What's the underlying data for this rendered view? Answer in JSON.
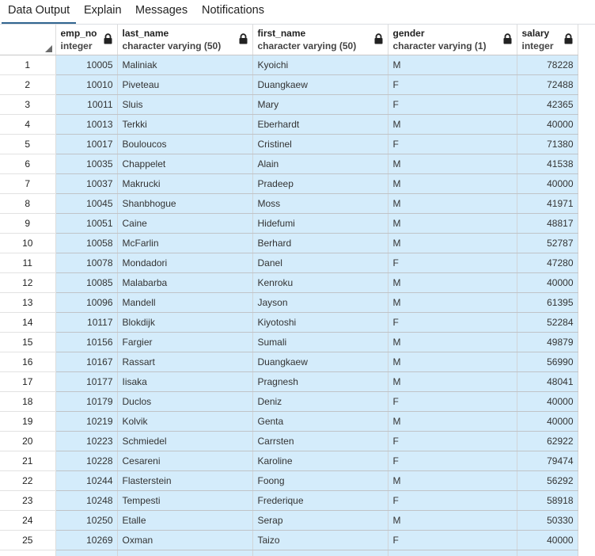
{
  "tabs": [
    {
      "label": "Data Output",
      "active": true
    },
    {
      "label": "Explain",
      "active": false
    },
    {
      "label": "Messages",
      "active": false
    },
    {
      "label": "Notifications",
      "active": false
    }
  ],
  "columns": [
    {
      "name": "emp_no",
      "type": "integer",
      "align": "right"
    },
    {
      "name": "last_name",
      "type": "character varying (50)",
      "align": "left"
    },
    {
      "name": "first_name",
      "type": "character varying (50)",
      "align": "left"
    },
    {
      "name": "gender",
      "type": "character varying (1)",
      "align": "left"
    },
    {
      "name": "salary",
      "type": "integer",
      "align": "right"
    }
  ],
  "rows": [
    [
      "1",
      "10005",
      "Maliniak",
      "Kyoichi",
      "M",
      "78228"
    ],
    [
      "2",
      "10010",
      "Piveteau",
      "Duangkaew",
      "F",
      "72488"
    ],
    [
      "3",
      "10011",
      "Sluis",
      "Mary",
      "F",
      "42365"
    ],
    [
      "4",
      "10013",
      "Terkki",
      "Eberhardt",
      "M",
      "40000"
    ],
    [
      "5",
      "10017",
      "Bouloucos",
      "Cristinel",
      "F",
      "71380"
    ],
    [
      "6",
      "10035",
      "Chappelet",
      "Alain",
      "M",
      "41538"
    ],
    [
      "7",
      "10037",
      "Makrucki",
      "Pradeep",
      "M",
      "40000"
    ],
    [
      "8",
      "10045",
      "Shanbhogue",
      "Moss",
      "M",
      "41971"
    ],
    [
      "9",
      "10051",
      "Caine",
      "Hidefumi",
      "M",
      "48817"
    ],
    [
      "10",
      "10058",
      "McFarlin",
      "Berhard",
      "M",
      "52787"
    ],
    [
      "11",
      "10078",
      "Mondadori",
      "Danel",
      "F",
      "47280"
    ],
    [
      "12",
      "10085",
      "Malabarba",
      "Kenroku",
      "M",
      "40000"
    ],
    [
      "13",
      "10096",
      "Mandell",
      "Jayson",
      "M",
      "61395"
    ],
    [
      "14",
      "10117",
      "Blokdijk",
      "Kiyotoshi",
      "F",
      "52284"
    ],
    [
      "15",
      "10156",
      "Fargier",
      "Sumali",
      "M",
      "49879"
    ],
    [
      "16",
      "10167",
      "Rassart",
      "Duangkaew",
      "M",
      "56990"
    ],
    [
      "17",
      "10177",
      "Iisaka",
      "Pragnesh",
      "M",
      "48041"
    ],
    [
      "18",
      "10179",
      "Duclos",
      "Deniz",
      "F",
      "40000"
    ],
    [
      "19",
      "10219",
      "Kolvik",
      "Genta",
      "M",
      "40000"
    ],
    [
      "20",
      "10223",
      "Schmiedel",
      "Carrsten",
      "F",
      "62922"
    ],
    [
      "21",
      "10228",
      "Cesareni",
      "Karoline",
      "F",
      "79474"
    ],
    [
      "22",
      "10244",
      "Flasterstein",
      "Foong",
      "M",
      "56292"
    ],
    [
      "23",
      "10248",
      "Tempesti",
      "Frederique",
      "F",
      "58918"
    ],
    [
      "24",
      "10250",
      "Etalle",
      "Serap",
      "M",
      "50330"
    ],
    [
      "25",
      "10269",
      "Oxman",
      "Taizo",
      "F",
      "40000"
    ],
    [
      "",
      "",
      "",
      "",
      "",
      ""
    ]
  ],
  "colors": {
    "accent": "#326690",
    "cell_bg": "#d4ecfb"
  },
  "icons": {
    "lock": "lock-icon",
    "corner": "select-all-corner-icon"
  }
}
